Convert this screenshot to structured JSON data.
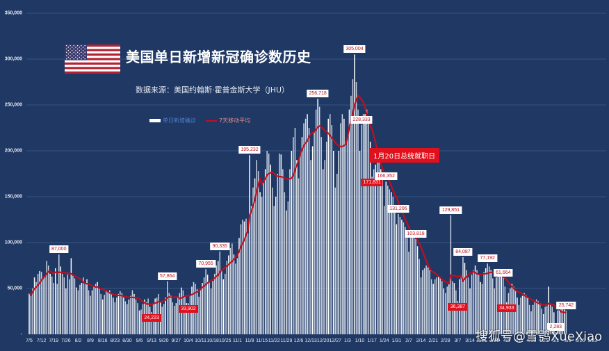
{
  "title": "美国单日新增新冠确诊数历史",
  "source": "数据来源：美国约翰斯·霍普金斯大学（JHU）",
  "legend": {
    "bars": "单日新增确诊",
    "line": "7天移动平均"
  },
  "annotation": "1月20日总统就职日",
  "watermark": "搜狐号@雪鸮XueXiao",
  "colors": {
    "background": "#1f3864",
    "bars": "#ffffff",
    "line": "#c0101e",
    "grid": "#3a5585",
    "label_red": "#e0101c"
  },
  "chart_data": {
    "type": "bar",
    "title": "美国单日新增新冠确诊数历史",
    "subtitle": "数据来源：美国约翰斯·霍普金斯大学（JHU）",
    "xlabel": "",
    "ylabel": "",
    "ylim": [
      0,
      350000
    ],
    "grid": true,
    "legend_position": "top-left",
    "y_ticks": [
      "-",
      "50,000",
      "100,000",
      "150,000",
      "200,000",
      "250,000",
      "300,000",
      "350,000"
    ],
    "x_ticks": [
      "7/5",
      "7/12",
      "7/19",
      "7/26",
      "8/2",
      "8/9",
      "8/16",
      "8/23",
      "8/30",
      "9/6",
      "9/13",
      "9/20",
      "9/27",
      "10/4",
      "10/11",
      "10/18",
      "10/25",
      "11/1",
      "11/8",
      "11/15",
      "11/22",
      "11/29",
      "12/6",
      "12/13",
      "12/20",
      "12/27",
      "1/3",
      "1/10",
      "1/17",
      "1/24",
      "1/31",
      "2/7",
      "2/14",
      "2/21",
      "2/28",
      "3/7",
      "3/14",
      "3/21",
      "3/28",
      "4/4",
      "4/11",
      "4/18",
      "4/25",
      "5/2",
      "5/9",
      "5/16",
      "5/23"
    ],
    "series": [
      {
        "name": "单日新增确诊",
        "type": "bar",
        "weekly_values": [
          [
            45000,
            42000,
            50000,
            62000,
            57000,
            66000,
            69000
          ],
          [
            68000,
            60000,
            62000,
            80000,
            75000,
            66000,
            63000
          ],
          [
            56000,
            72000,
            55000,
            87000,
            74000,
            66000,
            62000
          ],
          [
            50000,
            67000,
            60000,
            83000,
            64000,
            61000,
            51000
          ],
          [
            48000,
            54000,
            56000,
            62000,
            55000,
            60000,
            48000
          ],
          [
            42000,
            48000,
            52000,
            55000,
            57000,
            50000,
            44000
          ],
          [
            38000,
            43000,
            47000,
            46000,
            48000,
            44000,
            40000
          ],
          [
            35000,
            40000,
            44000,
            47000,
            45000,
            40000,
            36000
          ],
          [
            33000,
            38000,
            42000,
            48000,
            44000,
            38000,
            34000
          ],
          [
            26000,
            27000,
            33000,
            38000,
            35000,
            39000,
            30000
          ],
          [
            24223,
            34000,
            39000,
            40000,
            44000,
            36000,
            30000
          ],
          [
            33000,
            40000,
            57864,
            45000,
            42000,
            35000,
            31000
          ],
          [
            34000,
            40000,
            45000,
            51000,
            48000,
            42000,
            34000
          ],
          [
            33902,
            43000,
            52000,
            57000,
            55000,
            49000,
            41000
          ],
          [
            48000,
            56000,
            62000,
            70955,
            65000,
            57000,
            50000
          ],
          [
            58000,
            66000,
            75000,
            80000,
            90335,
            70000,
            60000
          ],
          [
            66000,
            80000,
            86000,
            94000,
            99000,
            87000,
            77000
          ],
          [
            83000,
            105000,
            120000,
            125000,
            123000,
            126000,
            110000
          ],
          [
            195232,
            140000,
            160000,
            170000,
            190000,
            178000,
            155000
          ],
          [
            150000,
            165000,
            180000,
            200000,
            197000,
            185000,
            160000
          ],
          [
            140000,
            150000,
            175000,
            197000,
            196000,
            180000,
            155000
          ],
          [
            135000,
            145000,
            180000,
            200000,
            215000,
            225000,
            190000
          ],
          [
            170000,
            195000,
            215000,
            230000,
            235000,
            240000,
            225000
          ],
          [
            190000,
            205000,
            220000,
            245000,
            256718,
            248000,
            215000
          ],
          [
            180000,
            190000,
            210000,
            235000,
            240000,
            228000,
            200000
          ],
          [
            160000,
            175000,
            200000,
            230000,
            240000,
            235000,
            210000
          ],
          [
            215000,
            245000,
            260000,
            278000,
            305004,
            275000,
            245000
          ],
          [
            200000,
            228333,
            240000,
            240000,
            245000,
            230000,
            210000
          ],
          [
            171831,
            180000,
            185000,
            187000,
            190000,
            180000,
            170000
          ],
          [
            140000,
            166352,
            162000,
            158000,
            155000,
            150000,
            135000
          ],
          [
            120000,
            131206,
            128000,
            125000,
            122000,
            117000,
            105000
          ],
          [
            90000,
            105000,
            108000,
            110000,
            103818,
            96000,
            82000
          ],
          [
            62000,
            70000,
            72000,
            75000,
            73000,
            70000,
            60000
          ],
          [
            55000,
            60000,
            62000,
            64000,
            62000,
            58000,
            50000
          ],
          [
            45000,
            52000,
            55000,
            129851,
            58000,
            56000,
            48000
          ],
          [
            36387,
            60000,
            62000,
            84087,
            78000,
            70000,
            62000
          ],
          [
            50000,
            65000,
            70000,
            75000,
            70000,
            66000,
            57000
          ],
          [
            55000,
            68000,
            72000,
            77192,
            74000,
            70000,
            61000
          ],
          [
            50000,
            62000,
            68000,
            70000,
            66000,
            61664,
            52000
          ],
          [
            34933,
            45000,
            50000,
            55000,
            52000,
            48000,
            40000
          ],
          [
            32000,
            40000,
            42000,
            45000,
            43000,
            40000,
            32000
          ],
          [
            25000,
            32000,
            35000,
            38000,
            36000,
            34000,
            28000
          ],
          [
            22000,
            30000,
            33000,
            52000,
            32000,
            30000,
            24000
          ],
          [
            2283,
            26000,
            28000,
            30000,
            29000,
            27000,
            25742
          ]
        ]
      },
      {
        "name": "7天移动平均",
        "type": "line"
      }
    ],
    "labels": [
      {
        "text": "87,000",
        "value": 87000,
        "week": 2,
        "day": 3,
        "style": "white"
      },
      {
        "text": "24,223",
        "value": 24223,
        "week": 10,
        "day": 0,
        "style": "red"
      },
      {
        "text": "57,864",
        "value": 57864,
        "week": 11,
        "day": 2,
        "style": "white"
      },
      {
        "text": "33,902",
        "value": 33902,
        "week": 13,
        "day": 0,
        "style": "red"
      },
      {
        "text": "70,955",
        "value": 70955,
        "week": 14,
        "day": 3,
        "style": "white"
      },
      {
        "text": "90,335",
        "value": 90335,
        "week": 15,
        "day": 4,
        "style": "white"
      },
      {
        "text": "195,232",
        "value": 195232,
        "week": 18,
        "day": 0,
        "style": "white"
      },
      {
        "text": "256,718",
        "value": 256718,
        "week": 23,
        "day": 4,
        "style": "white"
      },
      {
        "text": "305,004",
        "value": 305004,
        "week": 26,
        "day": 4,
        "style": "white"
      },
      {
        "text": "228,333",
        "value": 228333,
        "week": 27,
        "day": 1,
        "style": "white"
      },
      {
        "text": "171,831",
        "value": 171831,
        "week": 28,
        "day": 0,
        "style": "red"
      },
      {
        "text": "166,352",
        "value": 166352,
        "week": 29,
        "day": 1,
        "style": "white"
      },
      {
        "text": "131,206",
        "value": 131206,
        "week": 30,
        "day": 1,
        "style": "white"
      },
      {
        "text": "103,818",
        "value": 103818,
        "week": 31,
        "day": 4,
        "style": "white"
      },
      {
        "text": "129,851",
        "value": 129851,
        "week": 34,
        "day": 3,
        "style": "white"
      },
      {
        "text": "36,387",
        "value": 36387,
        "week": 35,
        "day": 0,
        "style": "red"
      },
      {
        "text": "84,087",
        "value": 84087,
        "week": 35,
        "day": 3,
        "style": "white"
      },
      {
        "text": "77,192",
        "value": 77192,
        "week": 37,
        "day": 3,
        "style": "white"
      },
      {
        "text": "61,664",
        "value": 61664,
        "week": 38,
        "day": 5,
        "style": "white"
      },
      {
        "text": "34,933",
        "value": 34933,
        "week": 39,
        "day": 0,
        "style": "red"
      },
      {
        "text": "2,283",
        "value": 2283,
        "week": 43,
        "day": 0,
        "style": "white"
      },
      {
        "text": "25,742",
        "value": 25742,
        "week": 43,
        "day": 6,
        "style": "white"
      }
    ]
  }
}
